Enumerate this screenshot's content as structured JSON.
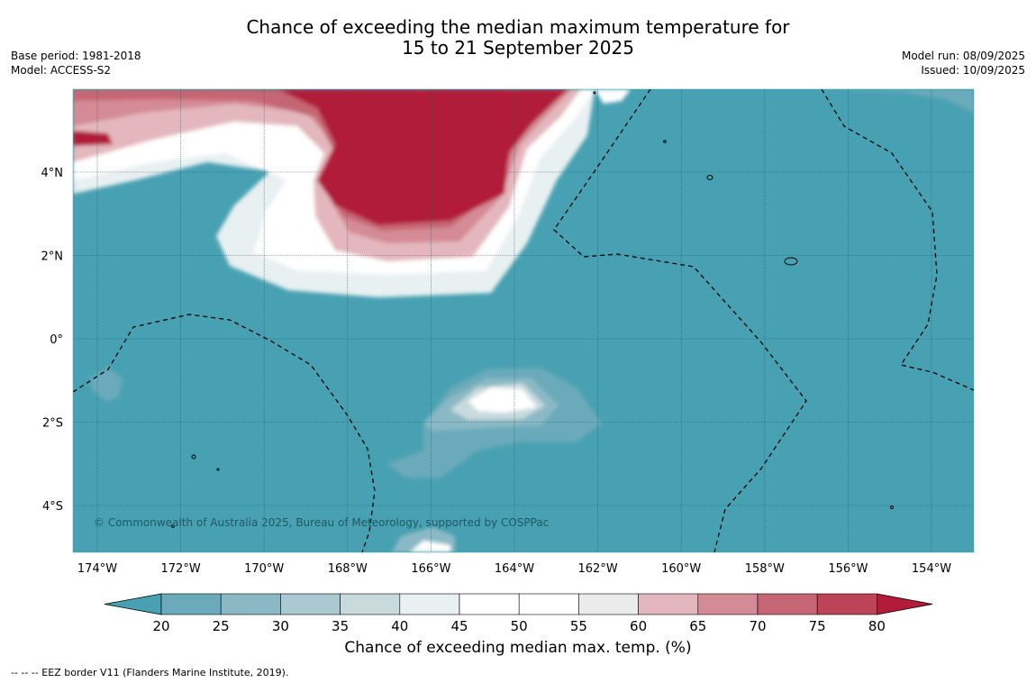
{
  "title": {
    "line1": "Chance of exceeding the median maximum temperature for",
    "line2": "15 to 21 September 2025"
  },
  "meta_left": {
    "base_period": "Base period: 1981-2018",
    "model": "Model: ACCESS-S2"
  },
  "meta_right": {
    "model_run": "Model run: 08/09/2025",
    "issued": "Issued: 10/09/2025"
  },
  "map": {
    "lat_labels": [
      "4°N",
      "2°N",
      "0°",
      "2°S",
      "4°S"
    ],
    "lon_labels": [
      "174°W",
      "172°W",
      "170°W",
      "168°W",
      "166°W",
      "164°W",
      "162°W",
      "160°W",
      "158°W",
      "156°W",
      "154°W"
    ],
    "copyright": "© Commonwealth of Australia 2025, Bureau of Meteorology, supported by COSPPac",
    "ocean_color": "#48a1b2"
  },
  "colorbar": {
    "ticks": [
      "20",
      "25",
      "30",
      "35",
      "40",
      "45",
      "50",
      "55",
      "60",
      "65",
      "70",
      "75",
      "80"
    ],
    "colors": [
      "#48a1b2",
      "#6aaabb",
      "#8ab9c5",
      "#aac9d0",
      "#c9dadd",
      "#e8f0f1",
      "#ffffff",
      "#ffffff",
      "#ecebeb",
      "#e3b7bd",
      "#d48b95",
      "#c66674",
      "#bb4458",
      "#b21c3b"
    ],
    "label": "Chance of exceeding median max. temp. (%)"
  },
  "footnote": "--  --  -- EEZ border V11 (Flanders Marine Institute, 2019)."
}
